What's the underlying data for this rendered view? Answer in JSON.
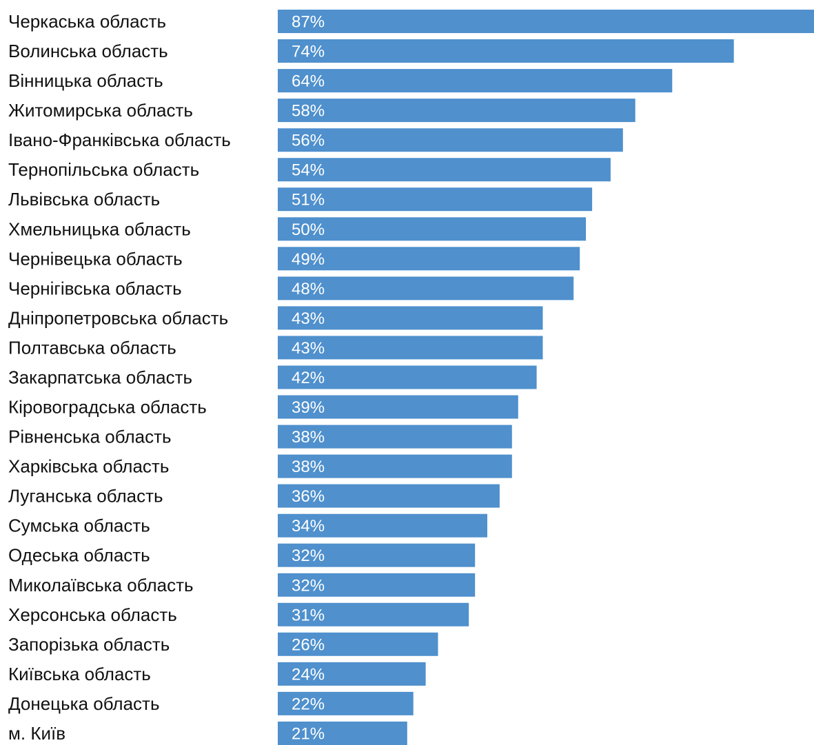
{
  "chart_data": {
    "type": "bar",
    "orientation": "horizontal",
    "categories": [
      "Черкаська область",
      "Волинська область",
      "Вінницька область",
      "Житомирська область",
      "Івано-Франківська область",
      "Тернопільська область",
      "Львівська область",
      "Хмельницька область",
      "Чернівецька область",
      "Чернігівська область",
      "Дніпропетровська область",
      "Полтавська область",
      "Закарпатська область",
      "Кіровоградська область",
      "Рівненська область",
      "Харківська область",
      "Луганська область",
      "Сумська область",
      "Одеська область",
      "Миколаївська область",
      "Херсонська область",
      "Запорізька область",
      "Київська область",
      "Донецька область",
      "м. Київ"
    ],
    "values": [
      87,
      74,
      64,
      58,
      56,
      54,
      51,
      50,
      49,
      48,
      43,
      43,
      42,
      39,
      38,
      38,
      36,
      34,
      32,
      32,
      31,
      26,
      24,
      22,
      21
    ],
    "value_labels": [
      "87%",
      "74%",
      "64%",
      "58%",
      "56%",
      "54%",
      "51%",
      "50%",
      "49%",
      "48%",
      "43%",
      "43%",
      "42%",
      "39%",
      "38%",
      "38%",
      "36%",
      "34%",
      "32%",
      "32%",
      "31%",
      "26%",
      "24%",
      "22%",
      "21%"
    ],
    "unit": "%",
    "title": "",
    "xlabel": "",
    "ylabel": "",
    "xlim": [
      0,
      87
    ],
    "grid": false,
    "legend": "none",
    "bar_color": "#4f90cd",
    "label_color": "#ffffff",
    "text_color": "#111111"
  }
}
